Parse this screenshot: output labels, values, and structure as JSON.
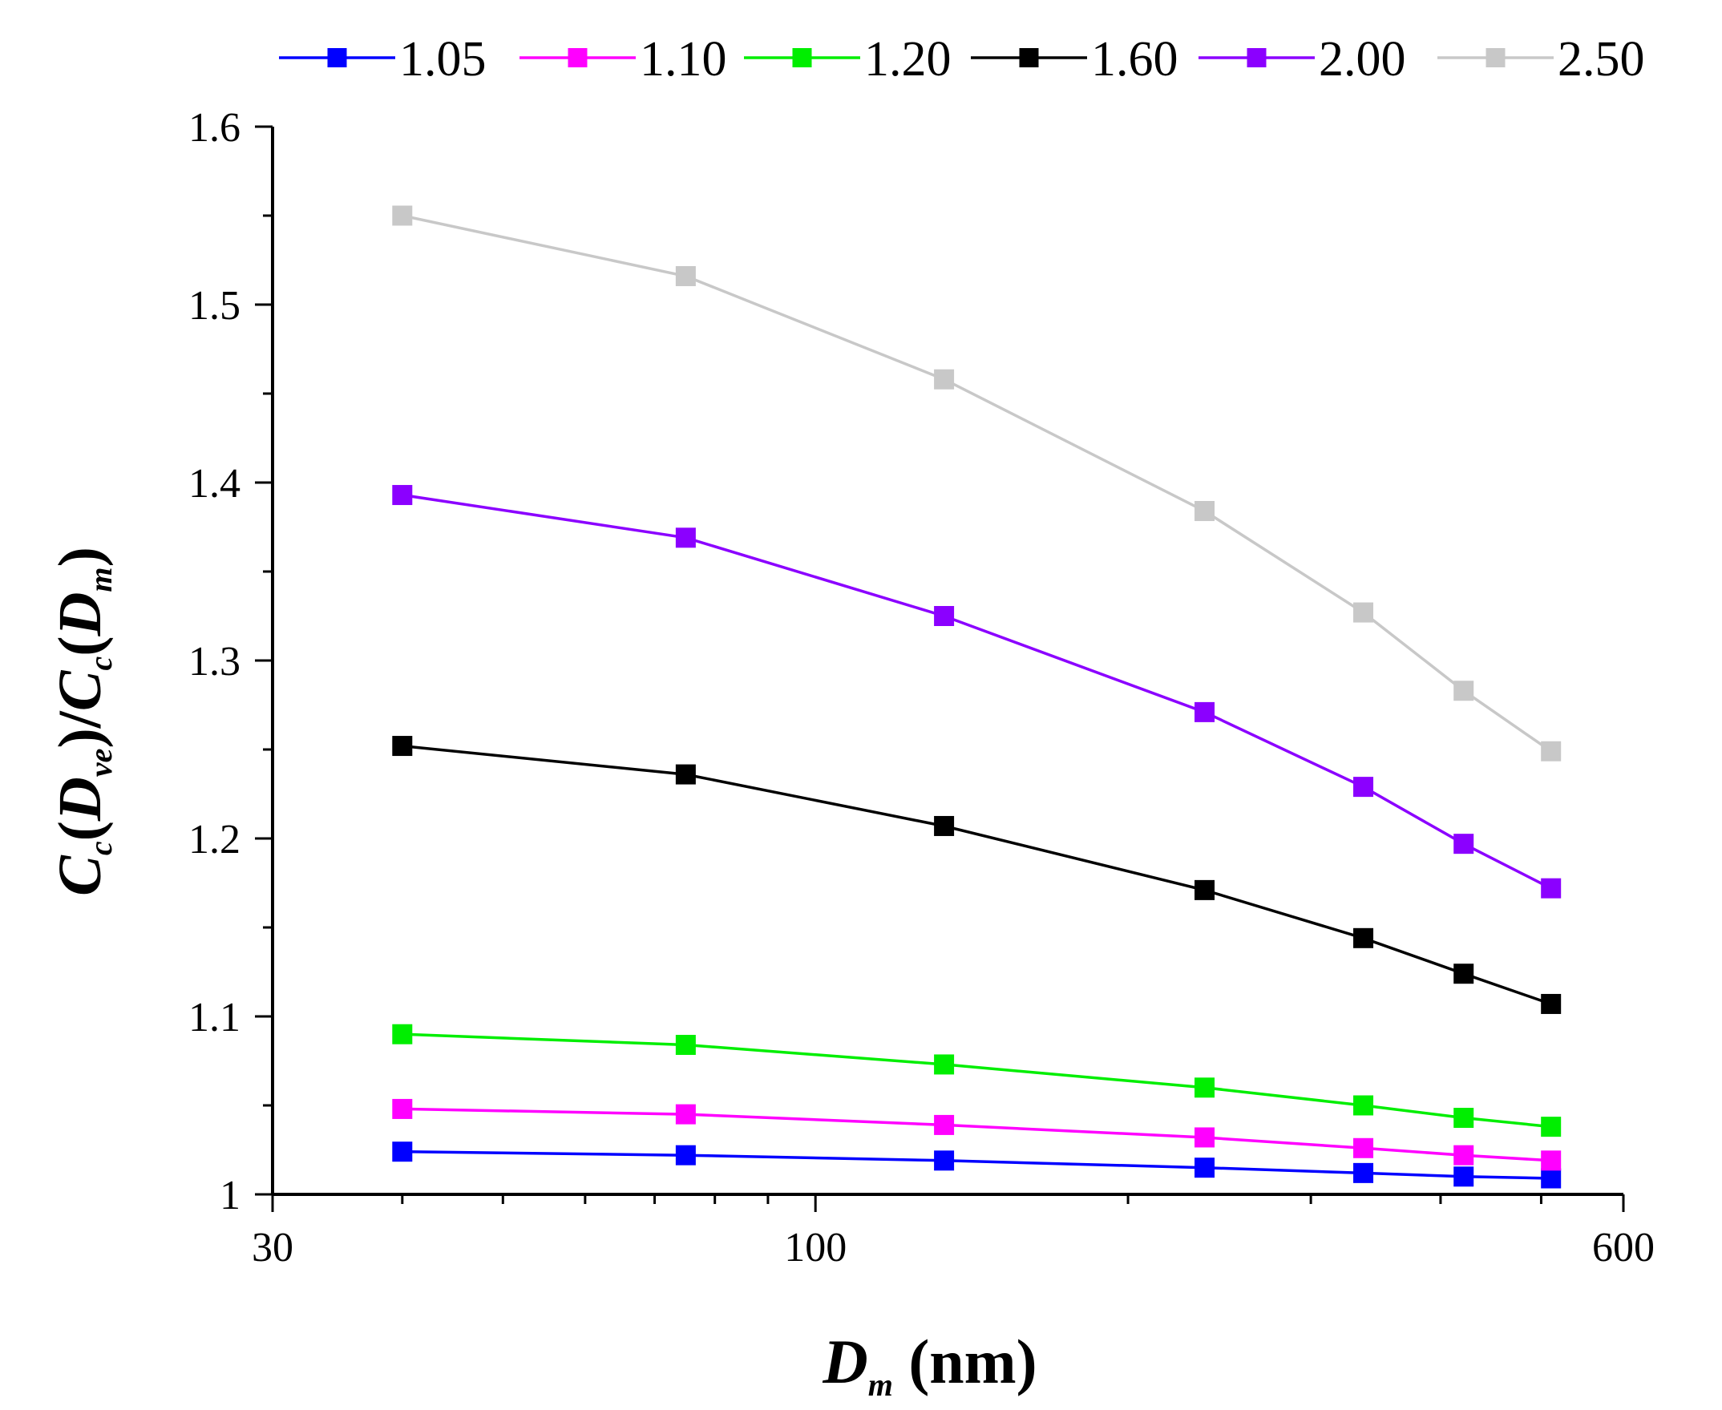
{
  "chart_data": {
    "type": "line",
    "x_scale": "log",
    "x": [
      40,
      75,
      133,
      237,
      337,
      421,
      511
    ],
    "series": [
      {
        "name": "1.05",
        "color": "#0000ff",
        "values": [
          1.024,
          1.022,
          1.019,
          1.015,
          1.012,
          1.01,
          1.009
        ]
      },
      {
        "name": "1.10",
        "color": "#ff00ff",
        "values": [
          1.048,
          1.045,
          1.039,
          1.032,
          1.026,
          1.022,
          1.019
        ]
      },
      {
        "name": "1.20",
        "color": "#00ee00",
        "values": [
          1.09,
          1.084,
          1.073,
          1.06,
          1.05,
          1.043,
          1.038
        ]
      },
      {
        "name": "1.60",
        "color": "#000000",
        "values": [
          1.252,
          1.236,
          1.207,
          1.171,
          1.144,
          1.124,
          1.107
        ]
      },
      {
        "name": "2.00",
        "color": "#8b00ff",
        "values": [
          1.393,
          1.369,
          1.325,
          1.271,
          1.229,
          1.197,
          1.172
        ]
      },
      {
        "name": "2.50",
        "color": "#c8c8c8",
        "values": [
          1.55,
          1.516,
          1.458,
          1.384,
          1.327,
          1.283,
          1.249
        ]
      }
    ],
    "xlim": [
      30,
      600
    ],
    "ylim": [
      1.0,
      1.6
    ],
    "x_ticks": [
      30,
      100,
      600
    ],
    "x_tick_labels": [
      "30",
      "100",
      "600"
    ],
    "y_ticks": [
      1.0,
      1.1,
      1.2,
      1.3,
      1.4,
      1.5,
      1.6
    ],
    "y_tick_labels": [
      "1",
      "1.1",
      "1.2",
      "1.3",
      "1.4",
      "1.5",
      "1.6"
    ],
    "xlabel": {
      "main": "D",
      "sub": "m",
      "unit": " (nm)"
    },
    "ylabel": {
      "c1": "C",
      "c1sub": "c",
      "d1": "D",
      "d1sub": "ve",
      "c2": "C",
      "c2sub": "c",
      "d2": "D",
      "d2sub": "m"
    },
    "legend_position": "top",
    "grid": false
  }
}
